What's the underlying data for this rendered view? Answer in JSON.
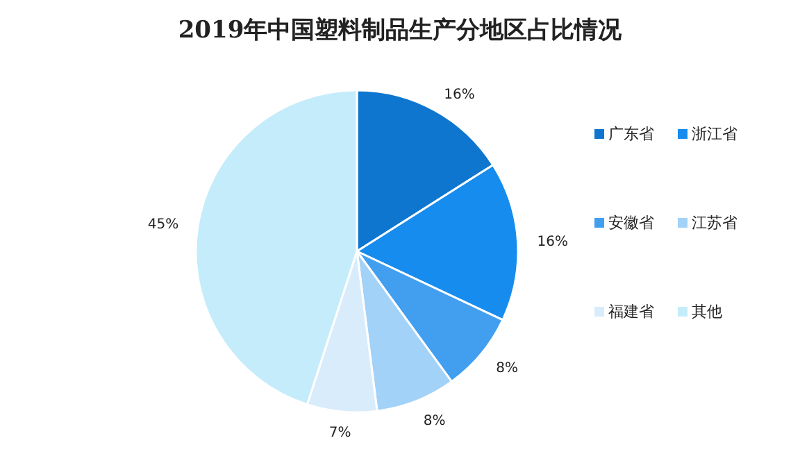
{
  "chart_data": {
    "type": "pie",
    "title": "2019年中国塑料制品生产分地区占比情况",
    "categories": [
      "广东省",
      "浙江省",
      "安徽省",
      "江苏省",
      "福建省",
      "其他"
    ],
    "values": [
      16,
      16,
      8,
      8,
      7,
      45
    ],
    "value_labels": [
      "16%",
      "16%",
      "8%",
      "8%",
      "7%",
      "45%"
    ],
    "colors": [
      "#0e76cf",
      "#168cee",
      "#429ff0",
      "#a3d2f8",
      "#d8ecfc",
      "#c4ecfb"
    ],
    "legend": "right"
  }
}
